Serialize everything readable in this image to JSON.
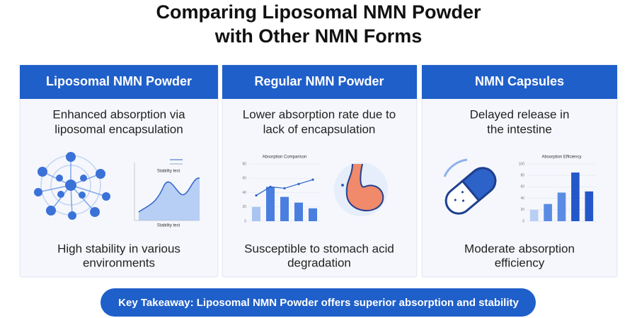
{
  "title": [
    "Comparing Liposomal NMN Powder",
    "with Other NMN Forms"
  ],
  "cards": [
    {
      "header": "Liposomal NMN Powder",
      "description": [
        "Enhanced absorption via",
        "liposomal encapsulation"
      ],
      "chart": {
        "labels": [
          "Stability test",
          "Stability test"
        ]
      },
      "footer": [
        "High stability in various",
        "environments"
      ]
    },
    {
      "header": "Regular NMN Powder",
      "description": [
        "Lower absorption rate due to",
        "lack of encapsulation"
      ],
      "chart": {
        "title": "Absorption Comparison",
        "ylim": [
          0,
          80
        ],
        "yticks": [
          0,
          20,
          40,
          60,
          80
        ],
        "values": [
          20,
          48,
          34,
          26,
          18
        ],
        "line": [
          36,
          48,
          46,
          52,
          58
        ]
      },
      "footer": [
        "Susceptible to stomach acid",
        "degradation"
      ]
    },
    {
      "header": "NMN Capsules",
      "description": [
        "Delayed release in",
        "the intestine"
      ],
      "chart": {
        "title": "Absorption Efficiency",
        "ylim": [
          0,
          100
        ],
        "yticks": [
          0,
          20,
          40,
          60,
          80,
          100
        ],
        "values": [
          20,
          30,
          50,
          85,
          52
        ]
      },
      "footer": [
        "Moderate absorption",
        "efficiency"
      ]
    }
  ],
  "takeaway": "Key Takeaway: Liposomal NMN Powder offers superior absorption and stability"
}
